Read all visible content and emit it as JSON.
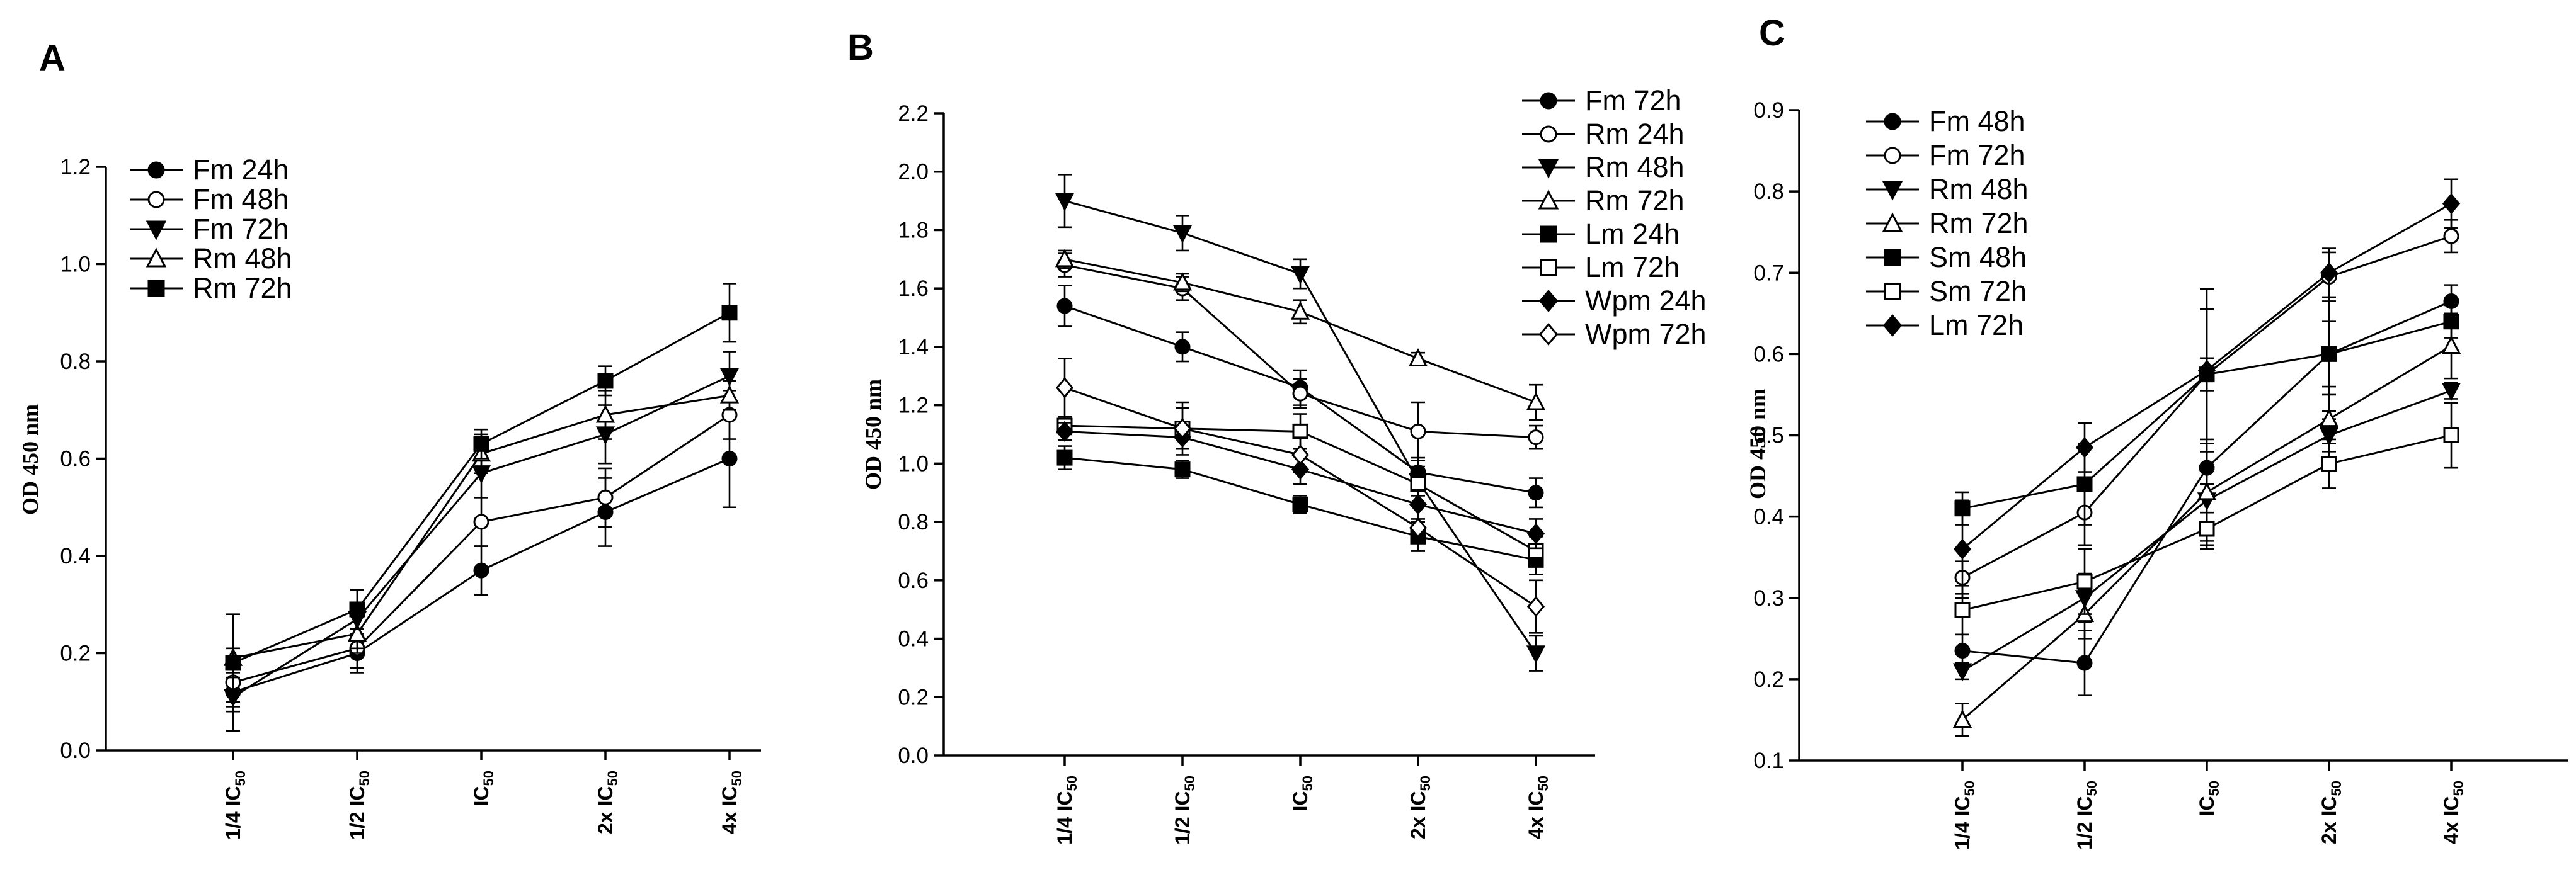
{
  "chart_data": [
    {
      "panel": "A",
      "type": "line",
      "ylabel": "OD 450 nm",
      "ylim": [
        0,
        1.2
      ],
      "yticks": [
        "0.0",
        "0.2",
        "0.4",
        "0.6",
        "0.8",
        "1.0",
        "1.2"
      ],
      "categories": [
        {
          "base": "1/4 IC",
          "sub": "50"
        },
        {
          "base": "1/2 IC",
          "sub": "50"
        },
        {
          "base": "IC",
          "sub": "50"
        },
        {
          "base": "2x IC",
          "sub": "50"
        },
        {
          "base": "4x IC",
          "sub": "50"
        }
      ],
      "series": [
        {
          "name": "Fm 24h",
          "marker": "circle-filled",
          "values": [
            0.12,
            0.2,
            0.37,
            0.49,
            0.6
          ],
          "errors": [
            0.04,
            0.04,
            0.05,
            0.07,
            0.1
          ]
        },
        {
          "name": "Fm 48h",
          "marker": "circle-open",
          "values": [
            0.14,
            0.21,
            0.47,
            0.52,
            0.69
          ],
          "errors": [
            0.05,
            0.04,
            0.05,
            0.06,
            0.05
          ]
        },
        {
          "name": "Fm 72h",
          "marker": "triangle-down",
          "values": [
            0.11,
            0.27,
            0.57,
            0.65,
            0.77
          ],
          "errors": [
            0.07,
            0.06,
            0.05,
            0.06,
            0.05
          ]
        },
        {
          "name": "Rm 48h",
          "marker": "triangle-up-open",
          "values": [
            0.19,
            0.24,
            0.61,
            0.69,
            0.73
          ],
          "errors": [
            0.09,
            0.04,
            0.04,
            0.05,
            0.03
          ]
        },
        {
          "name": "Rm 72h",
          "marker": "square-filled",
          "values": [
            0.18,
            0.29,
            0.63,
            0.76,
            0.9
          ],
          "errors": [
            0.03,
            0.04,
            0.03,
            0.03,
            0.06
          ]
        }
      ]
    },
    {
      "panel": "B",
      "type": "line",
      "ylabel": "OD 450 nm",
      "ylim": [
        0,
        2.2
      ],
      "yticks": [
        "0.0",
        "0.2",
        "0.4",
        "0.6",
        "0.8",
        "1.0",
        "1.2",
        "1.4",
        "1.6",
        "1.8",
        "2.0",
        "2.2"
      ],
      "categories": [
        {
          "base": "1/4 IC",
          "sub": "50"
        },
        {
          "base": "1/2 IC",
          "sub": "50"
        },
        {
          "base": "IC",
          "sub": "50"
        },
        {
          "base": "2x IC",
          "sub": "50"
        },
        {
          "base": "4x IC",
          "sub": "50"
        }
      ],
      "series": [
        {
          "name": "Fm 72h",
          "marker": "circle-filled",
          "values": [
            1.54,
            1.4,
            1.26,
            0.97,
            0.9
          ],
          "errors": [
            0.07,
            0.05,
            0.06,
            0.05,
            0.05
          ]
        },
        {
          "name": "Rm 24h",
          "marker": "circle-open",
          "values": [
            1.68,
            1.6,
            1.24,
            1.11,
            1.09
          ],
          "errors": [
            0.04,
            0.04,
            0.05,
            0.1,
            0.04
          ]
        },
        {
          "name": "Rm 48h",
          "marker": "triangle-down",
          "values": [
            1.9,
            1.79,
            1.65,
            0.94,
            0.35
          ],
          "errors": [
            0.09,
            0.06,
            0.05,
            0.05,
            0.06
          ]
        },
        {
          "name": "Rm 72h",
          "marker": "triangle-up-open",
          "values": [
            1.7,
            1.62,
            1.52,
            1.36,
            1.21
          ],
          "errors": [
            0.03,
            0.03,
            0.04,
            0.02,
            0.06
          ]
        },
        {
          "name": "Lm 24h",
          "marker": "square-filled",
          "values": [
            1.02,
            0.98,
            0.86,
            0.75,
            0.67
          ],
          "errors": [
            0.04,
            0.03,
            0.03,
            0.05,
            0.05
          ]
        },
        {
          "name": "Lm 72h",
          "marker": "square-open",
          "values": [
            1.13,
            1.12,
            1.11,
            0.93,
            0.7
          ],
          "errors": [
            0.03,
            0.09,
            0.06,
            0.04,
            0.05
          ]
        },
        {
          "name": "Wpm 24h",
          "marker": "diamond-filled",
          "values": [
            1.11,
            1.09,
            0.98,
            0.86,
            0.76
          ],
          "errors": [
            0.03,
            0.04,
            0.05,
            0.05,
            0.05
          ]
        },
        {
          "name": "Wpm 72h",
          "marker": "diamond-open",
          "values": [
            1.26,
            1.12,
            1.03,
            0.78,
            0.51
          ],
          "errors": [
            0.1,
            0.07,
            0.06,
            0.08,
            0.09
          ]
        }
      ]
    },
    {
      "panel": "C",
      "type": "line",
      "ylabel": "OD 450 nm",
      "ylim": [
        0.1,
        0.9
      ],
      "yticks": [
        "0.1",
        "0.2",
        "0.3",
        "0.4",
        "0.5",
        "0.6",
        "0.7",
        "0.8",
        "0.9"
      ],
      "categories": [
        {
          "base": "1/4 IC",
          "sub": "50"
        },
        {
          "base": "1/2 IC",
          "sub": "50"
        },
        {
          "base": "IC",
          "sub": "50"
        },
        {
          "base": "2x IC",
          "sub": "50"
        },
        {
          "base": "4x IC",
          "sub": "50"
        }
      ],
      "series": [
        {
          "name": "Fm 48h",
          "marker": "circle-filled",
          "values": [
            0.235,
            0.22,
            0.46,
            0.6,
            0.665
          ],
          "errors": [
            0.02,
            0.04,
            0.02,
            0.04,
            0.02
          ]
        },
        {
          "name": "Fm 72h",
          "marker": "circle-open",
          "values": [
            0.325,
            0.405,
            0.575,
            0.695,
            0.745
          ],
          "errors": [
            0.02,
            0.04,
            0.02,
            0.03,
            0.02
          ]
        },
        {
          "name": "Rm 48h",
          "marker": "triangle-down",
          "values": [
            0.21,
            0.3,
            0.42,
            0.5,
            0.555
          ],
          "errors": [
            0.01,
            0.03,
            0.06,
            0.02,
            0.01
          ]
        },
        {
          "name": "Rm 72h",
          "marker": "triangle-up-open",
          "values": [
            0.15,
            0.28,
            0.43,
            0.52,
            0.61
          ],
          "errors": [
            0.02,
            0.03,
            0.06,
            0.03,
            0.04
          ]
        },
        {
          "name": "Sm 48h",
          "marker": "square-filled",
          "values": [
            0.41,
            0.44,
            0.575,
            0.6,
            0.64
          ],
          "errors": [
            0.02,
            0.05,
            0.08,
            0.07,
            0.02
          ]
        },
        {
          "name": "Sm 72h",
          "marker": "square-open",
          "values": [
            0.285,
            0.32,
            0.385,
            0.465,
            0.5
          ],
          "errors": [
            0.03,
            0.04,
            0.02,
            0.03,
            0.04
          ]
        },
        {
          "name": "Lm 72h",
          "marker": "diamond-filled",
          "values": [
            0.36,
            0.485,
            0.58,
            0.7,
            0.785
          ],
          "errors": [
            0.06,
            0.03,
            0.1,
            0.03,
            0.03
          ]
        }
      ]
    }
  ]
}
